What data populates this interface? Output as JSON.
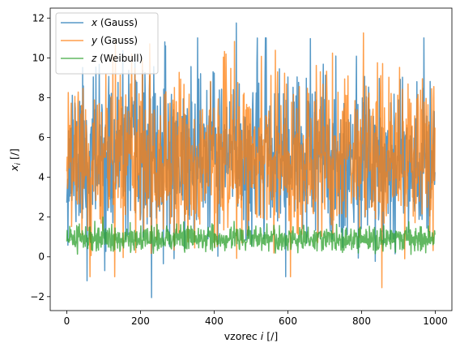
{
  "chart_data": {
    "type": "line",
    "title": "",
    "xlabel_prefix": "vzorec ",
    "xlabel_var": "i",
    "xlabel_suffix": " [/]",
    "ylabel_var": "x",
    "ylabel_sub": "i",
    "ylabel_suffix": " [/]",
    "xlim": [
      -45,
      1045
    ],
    "ylim": [
      -2.7,
      12.5
    ],
    "xticks": [
      0,
      200,
      400,
      600,
      800,
      1000
    ],
    "yticks": [
      -2,
      0,
      2,
      4,
      6,
      8,
      10,
      12
    ],
    "grid": false,
    "legend_position": "top-left",
    "n_points": 1000,
    "series": [
      {
        "name": "(Gauss)",
        "legend_var": "x",
        "color": "#1f77b4",
        "distribution": "normal",
        "mean": 5.0,
        "std": 2.0,
        "seed": 11,
        "extremes": [
          {
            "x": 6,
            "y": 2.8
          },
          {
            "x": 55,
            "y": -1.2
          },
          {
            "x": 230,
            "y": -2.05
          },
          {
            "x": 460,
            "y": 11.75
          },
          {
            "x": 355,
            "y": 11.0
          },
          {
            "x": 1000,
            "y": 7.8
          }
        ]
      },
      {
        "name": "(Gauss)",
        "legend_var": "y",
        "color": "#ff7f0e",
        "distribution": "normal",
        "mean": 5.0,
        "std": 2.0,
        "seed": 29,
        "extremes": [
          {
            "x": 130,
            "y": -1.0
          },
          {
            "x": 855,
            "y": -1.55
          },
          {
            "x": 805,
            "y": 11.25
          },
          {
            "x": 225,
            "y": 10.7
          },
          {
            "x": 0,
            "y": 4.3
          }
        ]
      },
      {
        "name": "(Weibull)",
        "legend_var": "z",
        "color": "#2ca02c",
        "distribution": "weibull",
        "shape": 3.0,
        "scale": 1.0,
        "seed": 47,
        "min": 0.05,
        "max": 2.0
      }
    ]
  }
}
